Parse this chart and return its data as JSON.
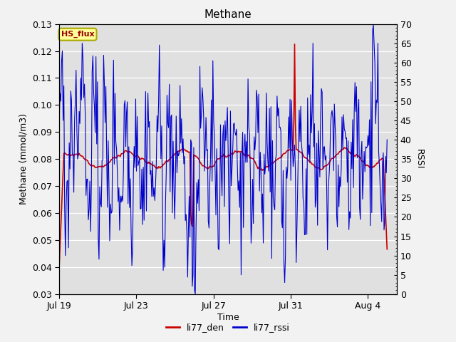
{
  "title": "Methane",
  "xlabel": "Time",
  "ylabel_left": "Methane (mmol/m3)",
  "ylabel_right": "RSSI",
  "ylim_left": [
    0.03,
    0.13
  ],
  "ylim_right": [
    0,
    70
  ],
  "yticks_left": [
    0.03,
    0.04,
    0.05,
    0.06,
    0.07,
    0.08,
    0.09,
    0.1,
    0.11,
    0.12,
    0.13
  ],
  "yticks_right": [
    0,
    5,
    10,
    15,
    20,
    25,
    30,
    35,
    40,
    45,
    50,
    55,
    60,
    65,
    70
  ],
  "xtick_labels": [
    "Jul 19",
    "Jul 23",
    "Jul 27",
    "Jul 31",
    "Aug 4"
  ],
  "xtick_positions": [
    0,
    4,
    8,
    12,
    16
  ],
  "xlim": [
    0,
    17.5
  ],
  "color_den": "#cc0000",
  "color_rssi": "#0000cc",
  "fig_bg_color": "#f2f2f2",
  "plot_bg_color": "#e0e0e0",
  "grid_color": "#ffffff",
  "legend_labels": [
    "li77_den",
    "li77_rssi"
  ],
  "annotation_label": "HS_flux",
  "annotation_bg": "#ffff99",
  "annotation_border": "#aaaa00",
  "title_fontsize": 11,
  "axis_label_fontsize": 9,
  "tick_fontsize": 9,
  "legend_fontsize": 9,
  "seed": 42,
  "n_points": 430
}
